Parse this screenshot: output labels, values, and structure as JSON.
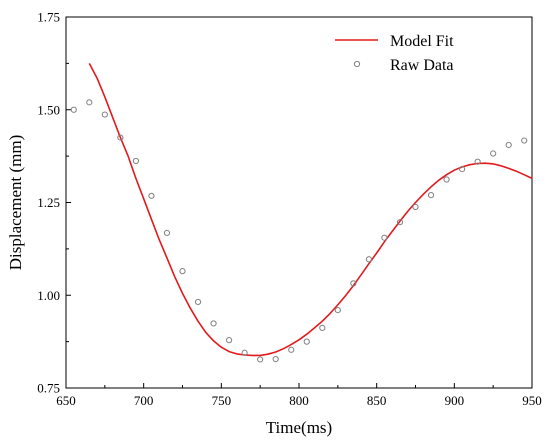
{
  "chart_data": {
    "type": "scatter",
    "title": "",
    "xlabel": "Time(ms)",
    "ylabel": "Displacement (mm)",
    "xlim": [
      650,
      950
    ],
    "ylim": [
      0.75,
      1.75
    ],
    "x_ticks": [
      "650",
      "700",
      "750",
      "800",
      "850",
      "900",
      "950"
    ],
    "y_ticks": [
      "0.75",
      "1.00",
      "1.25",
      "1.50",
      "1.75"
    ],
    "legend_position": "top-right",
    "grid": false,
    "series": [
      {
        "name": "Model Fit",
        "kind": "line",
        "color": "#e31a1c",
        "x": [
          665,
          670,
          675,
          680,
          685,
          690,
          695,
          700,
          705,
          710,
          715,
          720,
          725,
          730,
          735,
          740,
          745,
          750,
          755,
          760,
          765,
          770,
          775,
          780,
          785,
          790,
          795,
          800,
          805,
          810,
          815,
          820,
          825,
          830,
          835,
          840,
          845,
          850,
          855,
          860,
          865,
          870,
          875,
          880,
          885,
          890,
          895,
          900,
          905,
          910,
          915,
          920,
          925,
          930,
          935,
          940,
          945,
          950
        ],
        "y": [
          1.625,
          1.585,
          1.535,
          1.48,
          1.425,
          1.375,
          1.315,
          1.26,
          1.205,
          1.15,
          1.1,
          1.05,
          1.005,
          0.965,
          0.93,
          0.9,
          0.877,
          0.86,
          0.848,
          0.842,
          0.839,
          0.838,
          0.838,
          0.841,
          0.847,
          0.856,
          0.867,
          0.88,
          0.895,
          0.912,
          0.93,
          0.951,
          0.974,
          0.999,
          1.026,
          1.055,
          1.085,
          1.114,
          1.144,
          1.172,
          1.2,
          1.226,
          1.25,
          1.272,
          1.292,
          1.31,
          1.325,
          1.337,
          1.346,
          1.352,
          1.355,
          1.356,
          1.354,
          1.349,
          1.342,
          1.334,
          1.325,
          1.315
        ]
      },
      {
        "name": "Raw Data",
        "kind": "scatter",
        "color": "#808080",
        "x": [
          655,
          665,
          675,
          685,
          695,
          705,
          715,
          725,
          735,
          745,
          755,
          765,
          775,
          785,
          795,
          805,
          815,
          825,
          835,
          845,
          855,
          865,
          875,
          885,
          895,
          905,
          915,
          925,
          935,
          945
        ],
        "y": [
          1.5,
          1.52,
          1.487,
          1.425,
          1.362,
          1.268,
          1.168,
          1.065,
          0.982,
          0.924,
          0.879,
          0.845,
          0.827,
          0.828,
          0.853,
          0.875,
          0.912,
          0.96,
          1.032,
          1.097,
          1.155,
          1.197,
          1.238,
          1.27,
          1.312,
          1.34,
          1.36,
          1.382,
          1.405,
          1.417
        ]
      }
    ]
  }
}
